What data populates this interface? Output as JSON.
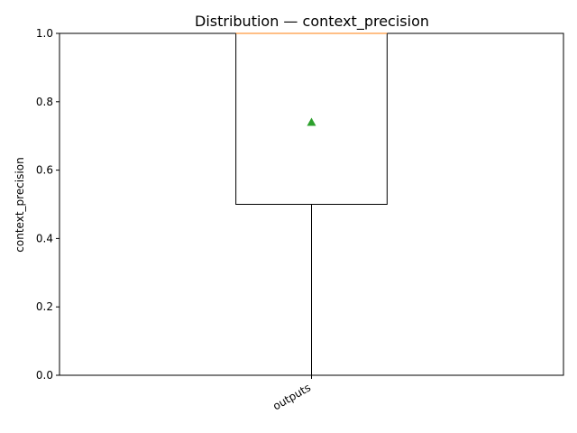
{
  "chart_data": {
    "type": "boxplot",
    "title": "Distribution — context_precision",
    "xlabel": "",
    "ylabel": "context_precision",
    "ylim": [
      0.0,
      1.0
    ],
    "y_ticks": [
      "0.0",
      "0.2",
      "0.4",
      "0.6",
      "0.8",
      "1.0"
    ],
    "categories": [
      "outputs"
    ],
    "boxes": [
      {
        "category": "outputs",
        "whisker_low": 0.0,
        "q1": 0.5,
        "median": 1.0,
        "q3": 1.0,
        "whisker_high": 1.0,
        "mean": 0.74
      }
    ],
    "grid": false,
    "colors": {
      "box": "#000000",
      "median": "#ff7f0e",
      "mean_marker": "#2ca02c"
    }
  }
}
